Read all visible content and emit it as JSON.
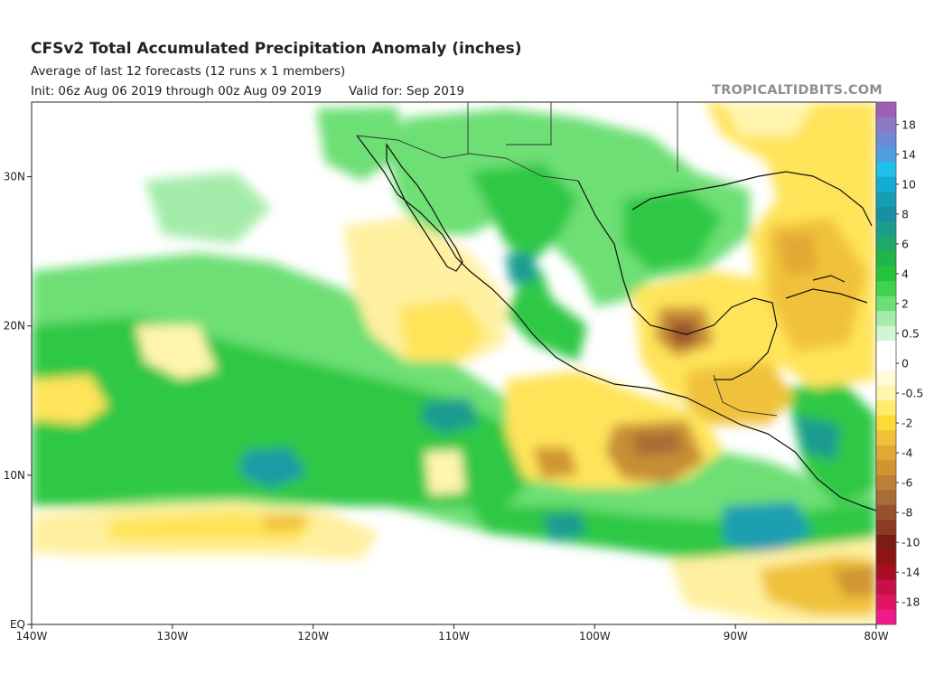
{
  "header": {
    "title": "CFSv2 Total Accumulated Precipitation Anomaly (inches)",
    "subtitle": "Average of last 12 forecasts (12 runs x 1 members)",
    "init": "Init: 06z Aug 06 2019 through 00z Aug 09 2019",
    "valid": "Valid for: Sep 2019",
    "brand": "TROPICALTIDBITS.COM"
  },
  "map": {
    "lon_range": [
      -140,
      -80
    ],
    "lat_range": [
      0,
      35
    ],
    "x_ticks": [
      {
        "lon": -140,
        "label": "140W"
      },
      {
        "lon": -130,
        "label": "130W"
      },
      {
        "lon": -120,
        "label": "120W"
      },
      {
        "lon": -110,
        "label": "110W"
      },
      {
        "lon": -100,
        "label": "100W"
      },
      {
        "lon": -90,
        "label": "90W"
      },
      {
        "lon": -80,
        "label": "80W"
      }
    ],
    "y_ticks": [
      {
        "lat": 30,
        "label": "30N"
      },
      {
        "lat": 20,
        "label": "20N"
      },
      {
        "lat": 10,
        "label": "10N"
      },
      {
        "lat": 0,
        "label": "EQ"
      }
    ]
  },
  "colorbar": {
    "bins": [
      {
        "color": "#9e5fb4",
        "label": ""
      },
      {
        "color": "#8e79c6",
        "label": "18"
      },
      {
        "color": "#6f89d4",
        "label": ""
      },
      {
        "color": "#4e9ee0",
        "label": "14"
      },
      {
        "color": "#1ec1ec",
        "label": ""
      },
      {
        "color": "#12acd4",
        "label": "10"
      },
      {
        "color": "#169cb4",
        "label": ""
      },
      {
        "color": "#1a8ea2",
        "label": "8"
      },
      {
        "color": "#1c9d8a",
        "label": ""
      },
      {
        "color": "#20a868",
        "label": "6"
      },
      {
        "color": "#1fb547",
        "label": ""
      },
      {
        "color": "#24c43a",
        "label": "4"
      },
      {
        "color": "#3fd24e",
        "label": ""
      },
      {
        "color": "#6ddf74",
        "label": "2"
      },
      {
        "color": "#a4ecaa",
        "label": ""
      },
      {
        "color": "#d2f6d4",
        "label": "0.5"
      },
      {
        "color": "#ffffff",
        "label": ""
      },
      {
        "color": "#ffffff",
        "label": "0"
      },
      {
        "color": "#fffbd8",
        "label": ""
      },
      {
        "color": "#fff5ae",
        "label": "-0.5"
      },
      {
        "color": "#ffeb6e",
        "label": ""
      },
      {
        "color": "#fadb38",
        "label": "-2"
      },
      {
        "color": "#f0c23a",
        "label": ""
      },
      {
        "color": "#e2a836",
        "label": "-4"
      },
      {
        "color": "#d09532",
        "label": ""
      },
      {
        "color": "#bb8035",
        "label": "-6"
      },
      {
        "color": "#a86c34",
        "label": ""
      },
      {
        "color": "#98512e",
        "label": "-8"
      },
      {
        "color": "#8c3a22",
        "label": ""
      },
      {
        "color": "#7a1e14",
        "label": "-10"
      },
      {
        "color": "#8e1414",
        "label": ""
      },
      {
        "color": "#a80e22",
        "label": "-14"
      },
      {
        "color": "#c81048",
        "label": ""
      },
      {
        "color": "#e01665",
        "label": "-18"
      },
      {
        "color": "#f01b8a",
        "label": ""
      }
    ]
  }
}
